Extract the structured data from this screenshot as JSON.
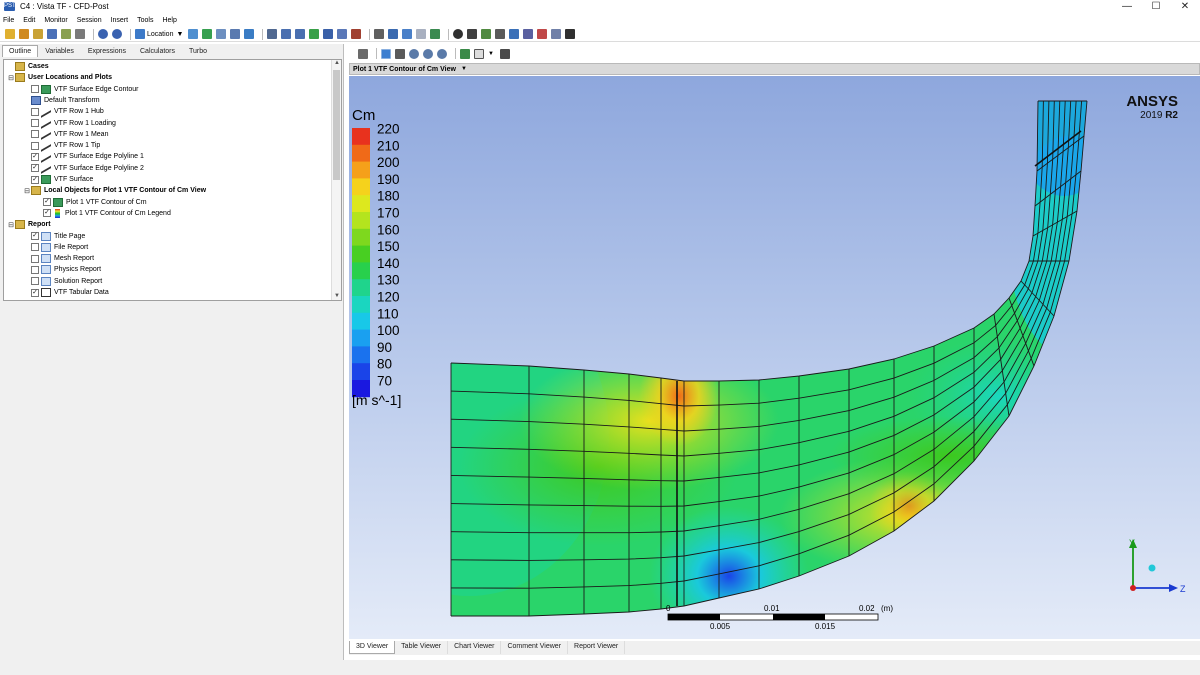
{
  "window": {
    "title": "C4 : Vista TF - CFD-Post",
    "icon_text": "PST",
    "minimize": "—",
    "maximize": "☐",
    "close": "✕"
  },
  "menu": [
    "File",
    "Edit",
    "Monitor",
    "Session",
    "Insert",
    "Tools",
    "Help"
  ],
  "toolbar": {
    "location_label": "Location"
  },
  "left_tabs": [
    "Outline",
    "Variables",
    "Expressions",
    "Calculators",
    "Turbo"
  ],
  "tree": [
    {
      "label": "Cases",
      "level": 0,
      "expander": "",
      "check": null,
      "icon": "folder",
      "bold": true
    },
    {
      "label": "User Locations and Plots",
      "level": 0,
      "expander": "⊟",
      "check": null,
      "icon": "folder",
      "bold": true
    },
    {
      "label": "VTF Surface Edge Contour",
      "level": 1,
      "expander": "",
      "check": false,
      "icon": "surface",
      "bold": false
    },
    {
      "label": "Default Transform",
      "level": 1,
      "expander": "",
      "check": null,
      "icon": "transform",
      "bold": false
    },
    {
      "label": "VTF Row 1 Hub",
      "level": 1,
      "expander": "",
      "check": false,
      "icon": "line",
      "bold": false
    },
    {
      "label": "VTF Row 1 Loading",
      "level": 1,
      "expander": "",
      "check": false,
      "icon": "line",
      "bold": false
    },
    {
      "label": "VTF Row 1 Mean",
      "level": 1,
      "expander": "",
      "check": false,
      "icon": "line",
      "bold": false
    },
    {
      "label": "VTF Row 1 Tip",
      "level": 1,
      "expander": "",
      "check": false,
      "icon": "line",
      "bold": false
    },
    {
      "label": "VTF Surface Edge Polyline 1",
      "level": 1,
      "expander": "",
      "check": true,
      "icon": "line",
      "bold": false
    },
    {
      "label": "VTF Surface Edge Polyline 2",
      "level": 1,
      "expander": "",
      "check": true,
      "icon": "line",
      "bold": false
    },
    {
      "label": "VTF Surface",
      "level": 1,
      "expander": "",
      "check": true,
      "icon": "surface",
      "bold": false
    },
    {
      "label": "Local Objects for Plot 1 VTF Contour of Cm View",
      "level": 1,
      "expander": "⊟",
      "check": null,
      "icon": "folder",
      "bold": true
    },
    {
      "label": "Plot 1 VTF Contour of Cm",
      "level": 2,
      "expander": "",
      "check": true,
      "icon": "surface",
      "bold": false
    },
    {
      "label": "Plot 1 VTF Contour of Cm Legend",
      "level": 2,
      "expander": "",
      "check": true,
      "icon": "legend",
      "bold": false
    },
    {
      "label": "Report",
      "level": 0,
      "expander": "⊟",
      "check": null,
      "icon": "folder",
      "bold": true
    },
    {
      "label": "Title Page",
      "level": 1,
      "expander": "",
      "check": true,
      "icon": "report",
      "bold": false
    },
    {
      "label": "File Report",
      "level": 1,
      "expander": "",
      "check": false,
      "icon": "report",
      "bold": false
    },
    {
      "label": "Mesh Report",
      "level": 1,
      "expander": "",
      "check": false,
      "icon": "report",
      "bold": false
    },
    {
      "label": "Physics Report",
      "level": 1,
      "expander": "",
      "check": false,
      "icon": "report",
      "bold": false
    },
    {
      "label": "Solution Report",
      "level": 1,
      "expander": "",
      "check": false,
      "icon": "report",
      "bold": false
    },
    {
      "label": "VTF Tabular Data",
      "level": 1,
      "expander": "",
      "check": true,
      "icon": "table",
      "bold": false
    }
  ],
  "viewer": {
    "title": "Plot 1 VTF Contour of Cm View",
    "brand": "ANSYS",
    "version_num": "2019",
    "version_rel": "R2",
    "legend": {
      "variable": "Cm",
      "unit": "[m s^-1]",
      "ticks": [
        "220",
        "210",
        "200",
        "190",
        "180",
        "170",
        "160",
        "150",
        "140",
        "130",
        "120",
        "110",
        "100",
        "90",
        "80",
        "70"
      ],
      "colors": [
        "#e8321e",
        "#f06a18",
        "#f5a01a",
        "#f5d21c",
        "#dde81e",
        "#b4e41e",
        "#7ed81e",
        "#48cf22",
        "#28d04c",
        "#1fd48c",
        "#1ad6c0",
        "#18c8e8",
        "#1aa0f0",
        "#1a72ee",
        "#1a44e8",
        "#1a18e0"
      ]
    },
    "scale": {
      "top_labels": [
        "0",
        "0.01",
        "0.02"
      ],
      "unit": "(m)",
      "bottom_labels": [
        "0.005",
        "0.015"
      ]
    },
    "axes": {
      "y": "Y",
      "z": "Z"
    }
  },
  "bottom_tabs": [
    "3D Viewer",
    "Table Viewer",
    "Chart Viewer",
    "Comment Viewer",
    "Report Viewer"
  ],
  "colors": {
    "accent": "#2a5db0",
    "viewport_top": "#8ea7dd",
    "viewport_bottom": "#e4ebf8"
  }
}
